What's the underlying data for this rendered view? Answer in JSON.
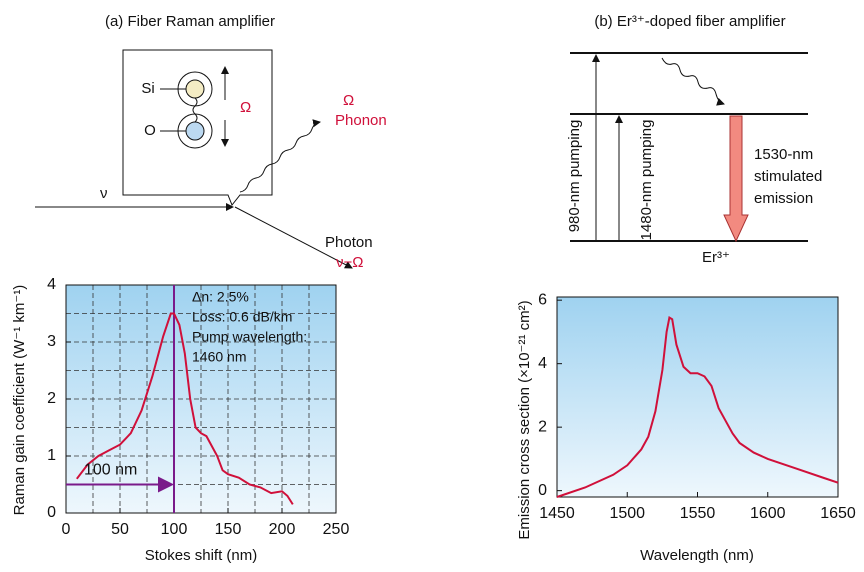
{
  "diagram_a": {
    "title": "(a) Fiber Raman amplifier",
    "si": "Si",
    "o": "O",
    "omega": "Ω",
    "phonon_omega": "Ω",
    "phonon": "Phonon",
    "nu": "ν",
    "photon": "Photon",
    "photon_freq": "ν−Ω"
  },
  "diagram_b": {
    "title": "(b) Er³⁺-doped fiber amplifier",
    "pump980": "980-nm pumping",
    "pump1480": "1480-nm pumping",
    "emission": [
      "1530-nm",
      "stimulated",
      "emission"
    ],
    "er": "Er³⁺"
  },
  "chart_data": [
    {
      "type": "line",
      "x_label": "Stokes shift (nm)",
      "y_label": "Raman gain coefficient (W⁻¹ km⁻¹)",
      "xlim": [
        0,
        250
      ],
      "xticks": [
        0,
        50,
        100,
        150,
        200,
        250
      ],
      "ylim": [
        0,
        4
      ],
      "yticks": [
        0,
        1,
        2,
        3,
        4
      ],
      "xgrid": [
        25,
        50,
        75,
        100,
        125,
        150,
        175,
        200,
        225
      ],
      "ygrid": [
        0.5,
        1,
        1.5,
        2,
        2.5,
        3,
        3.5
      ],
      "grid": true,
      "series": [
        {
          "color": "#d0103a",
          "x": [
            10,
            20,
            30,
            40,
            50,
            60,
            70,
            80,
            90,
            97,
            100,
            105,
            110,
            115,
            120,
            125,
            130,
            140,
            145,
            150,
            160,
            170,
            180,
            190,
            200,
            205,
            210
          ],
          "values": [
            0.6,
            0.85,
            1.0,
            1.1,
            1.2,
            1.4,
            1.8,
            2.4,
            3.1,
            3.5,
            3.5,
            3.3,
            2.8,
            2.0,
            1.5,
            1.4,
            1.35,
            1.0,
            0.75,
            0.68,
            0.62,
            0.5,
            0.45,
            0.35,
            0.38,
            0.3,
            0.15
          ]
        }
      ],
      "annotations": [
        "Δn: 2.5%",
        "Loss: 0.6 dB/km",
        "Pump wavelength:",
        "1460 nm"
      ],
      "marker_x": 100,
      "arrow": {
        "x": [
          0,
          100
        ],
        "y": 0.5,
        "label": "100 nm"
      }
    },
    {
      "type": "line",
      "x_label": "Wavelength (nm)",
      "y_label": "Emission cross section (×10⁻²¹ cm²)",
      "xlim": [
        1450,
        1650
      ],
      "xticks": [
        1450,
        1500,
        1550,
        1600,
        1650
      ],
      "ylim": [
        -0.2,
        6.1
      ],
      "yticks": [
        0,
        2,
        4,
        6
      ],
      "grid": false,
      "series": [
        {
          "color": "#d0103a",
          "x": [
            1450,
            1470,
            1490,
            1500,
            1510,
            1515,
            1520,
            1525,
            1528,
            1530,
            1532,
            1535,
            1540,
            1545,
            1550,
            1555,
            1560,
            1565,
            1570,
            1575,
            1580,
            1590,
            1600,
            1620,
            1640,
            1650
          ],
          "values": [
            -0.2,
            0.1,
            0.5,
            0.8,
            1.3,
            1.7,
            2.5,
            3.8,
            5.0,
            5.45,
            5.4,
            4.6,
            3.9,
            3.7,
            3.7,
            3.6,
            3.3,
            2.6,
            2.2,
            1.8,
            1.5,
            1.2,
            1.0,
            0.7,
            0.4,
            0.25
          ]
        }
      ]
    }
  ]
}
